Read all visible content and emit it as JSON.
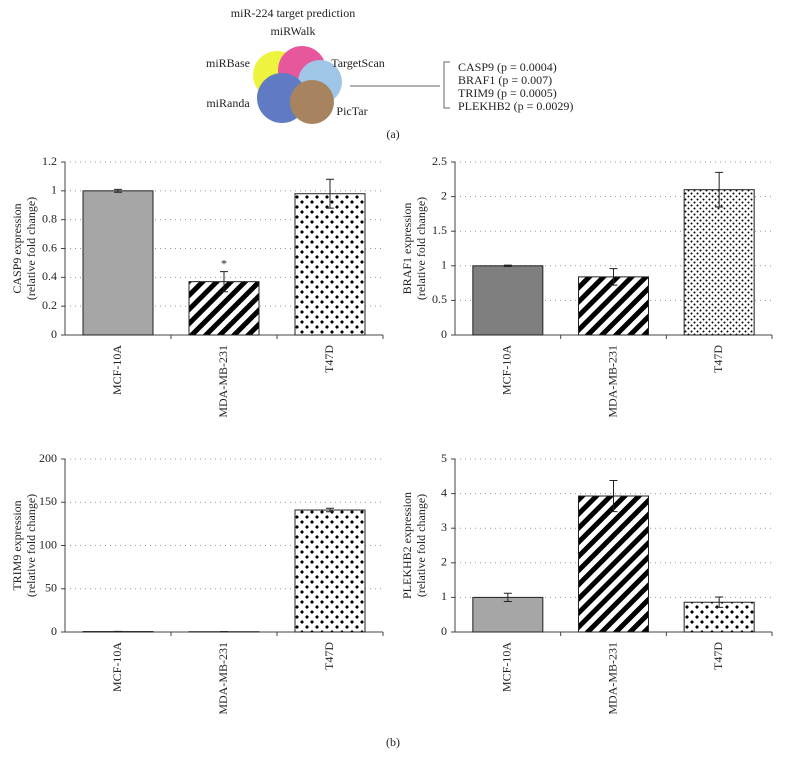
{
  "panel_a": {
    "title": "miR-224 target prediction",
    "center": "miRWalk",
    "databases": [
      "miRBase",
      "TargetScan",
      "miRanda",
      "PicTar"
    ],
    "targets": [
      "CASP9 (p = 0.0004)",
      "BRAF1 (p = 0.007)",
      "TRIM9 (p = 0.0005)",
      "PLEKHB2 (p = 0.0029)"
    ],
    "label": "(a)"
  },
  "panel_b_label": "(b)",
  "chart_data": [
    {
      "type": "bar",
      "ylabel": [
        "CASP9 expression",
        "(relative fold change)"
      ],
      "categories": [
        "MCF-10A",
        "MDA-MB-231",
        "T47D"
      ],
      "values": [
        1.0,
        0.37,
        0.98
      ],
      "errors": [
        0.01,
        0.07,
        0.1
      ],
      "color": "#a6a6a6",
      "bar_styles": [
        "solid",
        "stripes",
        "diamonds"
      ],
      "ylim": [
        0,
        1.2
      ],
      "yticks": [
        0,
        0.2,
        0.4,
        0.6,
        0.8,
        1,
        1.2
      ],
      "grid": true,
      "annotations": [
        {
          "text": "*",
          "x": "MDA-MB-231"
        }
      ]
    },
    {
      "type": "bar",
      "ylabel": [
        "BRAF1 expression",
        "(relative fold change)"
      ],
      "categories": [
        "MCF-10A",
        "MDA-MB-231",
        "T47D"
      ],
      "values": [
        1.0,
        0.84,
        2.1
      ],
      "errors": [
        0.01,
        0.12,
        0.25
      ],
      "color": "#7f7f7f",
      "bar_styles": [
        "solid",
        "stripes",
        "dots"
      ],
      "ylim": [
        0,
        2.5
      ],
      "yticks": [
        0,
        0.5,
        1,
        1.5,
        2,
        2.5
      ],
      "grid": true
    },
    {
      "type": "bar",
      "ylabel": [
        "TRIM9 expression",
        "(relative fold change)"
      ],
      "categories": [
        "MCF-10A",
        "MDA-MB-231",
        "T47D"
      ],
      "values": [
        0.5,
        0.3,
        141
      ],
      "errors": [
        0.2,
        0.1,
        2
      ],
      "color": "#a6a6a6",
      "bar_styles": [
        "solid",
        "stripes",
        "diamonds"
      ],
      "ylim": [
        0,
        200
      ],
      "yticks": [
        0,
        50,
        100,
        150,
        200
      ],
      "grid": true
    },
    {
      "type": "bar",
      "ylabel": [
        "PLEKHB2 expression",
        "(relative fold change)"
      ],
      "categories": [
        "MCF-10A",
        "MDA-MB-231",
        "T47D"
      ],
      "values": [
        1.0,
        3.93,
        0.86
      ],
      "errors": [
        0.12,
        0.45,
        0.15
      ],
      "color": "#a6a6a6",
      "bar_styles": [
        "solid",
        "stripes",
        "diamonds"
      ],
      "ylim": [
        0,
        5
      ],
      "yticks": [
        0,
        1,
        2,
        3,
        4,
        5
      ],
      "grid": true
    }
  ]
}
